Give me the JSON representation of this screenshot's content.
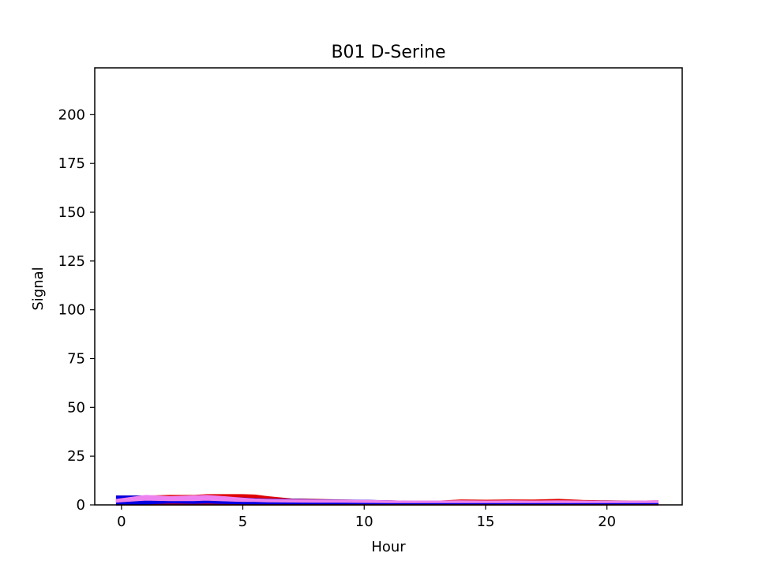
{
  "chart_data": {
    "type": "area",
    "title": "B01 D-Serine",
    "xlabel": "Hour",
    "ylabel": "Signal",
    "xlim": [
      -1.1,
      23.1
    ],
    "ylim": [
      0,
      224
    ],
    "xticks": [
      0,
      5,
      10,
      15,
      20
    ],
    "yticks": [
      0,
      25,
      50,
      75,
      100,
      125,
      150,
      175,
      200
    ],
    "grid": false,
    "x": [
      -0.2,
      1,
      2,
      3,
      3.5,
      4,
      5,
      5.5,
      6,
      7,
      8,
      9,
      10,
      11,
      12,
      13,
      14,
      15,
      16,
      17,
      18,
      19,
      20,
      21,
      22.1
    ],
    "series": [
      {
        "color": "#e00000",
        "lower": [
          0,
          0,
          0,
          0,
          0,
          0,
          0,
          0,
          0,
          0,
          0,
          0,
          0,
          0,
          0,
          0,
          0,
          0,
          0,
          0,
          0,
          0,
          0,
          0,
          0
        ],
        "upper": [
          4.5,
          4.5,
          4.8,
          4.8,
          5.2,
          5.2,
          5.2,
          5.0,
          4.2,
          3.0,
          2.8,
          2.5,
          2.2,
          2.0,
          1.8,
          1.8,
          2.5,
          2.3,
          2.5,
          2.4,
          2.8,
          2.2,
          2.0,
          1.8,
          2.0
        ]
      },
      {
        "color": "#0000e0",
        "lower": [
          0,
          0.5,
          1.0,
          0.8,
          1.0,
          0.8,
          0.6,
          0.6,
          0.6,
          0.6,
          0.6,
          0.6,
          0.6,
          0.6,
          0.6,
          0.6,
          0.6,
          0.6,
          0.6,
          0.6,
          0.6,
          0.6,
          0.6,
          0.6,
          0.6
        ],
        "upper": [
          4.5,
          4.5,
          4.0,
          3.8,
          4.2,
          4.0,
          3.5,
          3.2,
          3.0,
          2.8,
          2.6,
          2.4,
          2.3,
          2.0,
          1.8,
          1.8,
          1.9,
          1.8,
          1.8,
          1.8,
          1.8,
          1.8,
          1.8,
          1.7,
          1.7
        ]
      },
      {
        "color": "#ee82ee",
        "lower": [
          1.5,
          2.5,
          2.2,
          2.2,
          2.5,
          2.2,
          1.8,
          1.8,
          1.6,
          1.5,
          1.4,
          1.4,
          1.3,
          1.2,
          1.2,
          1.2,
          1.2,
          1.2,
          1.2,
          1.2,
          1.2,
          1.2,
          1.2,
          1.2,
          1.2
        ],
        "upper": [
          2.8,
          4.8,
          4.2,
          4.6,
          4.8,
          4.4,
          3.4,
          3.0,
          2.8,
          2.6,
          2.4,
          2.3,
          2.2,
          2.0,
          1.9,
          1.9,
          2.0,
          1.9,
          2.0,
          1.9,
          2.0,
          1.9,
          1.8,
          1.8,
          2.0
        ]
      }
    ]
  }
}
